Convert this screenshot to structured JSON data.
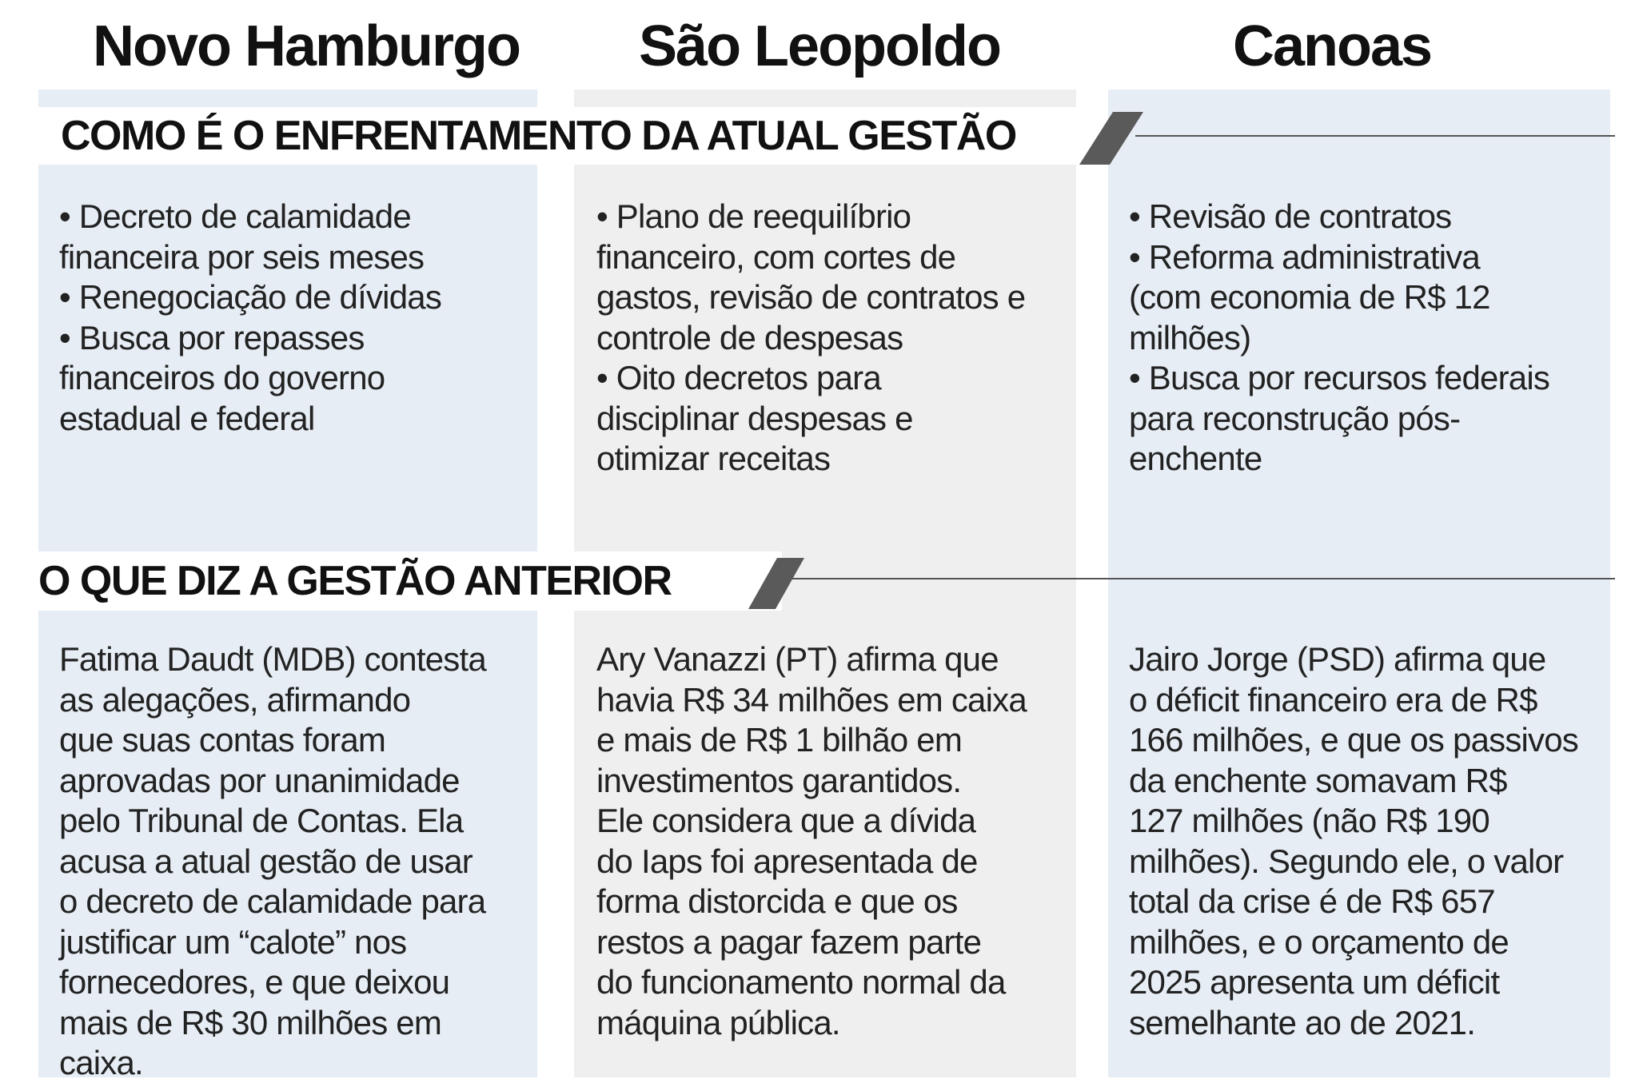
{
  "cities": [
    "Novo Hamburgo",
    "São Leopoldo",
    "Canoas"
  ],
  "section1": {
    "title": "COMO É O ENFRENTAMENTO DA ATUAL GESTÃO",
    "columns": [
      [
        "• Decreto de calamidade",
        "financeira por seis meses",
        "• Renegociação de dívidas",
        "• Busca por repasses",
        "financeiros do governo",
        "estadual e federal"
      ],
      [
        "• Plano de reequilíbrio",
        "financeiro, com cortes de",
        "gastos, revisão de contratos e",
        "controle de despesas",
        "• Oito decretos para",
        "disciplinar despesas e",
        "otimizar receitas"
      ],
      [
        "• Revisão de contratos",
        "• Reforma administrativa",
        "(com economia de R$ 12",
        "milhões)",
        "• Busca por recursos federais",
        "para reconstrução pós-",
        "enchente"
      ]
    ]
  },
  "section2": {
    "title": "O QUE DIZ A GESTÃO ANTERIOR",
    "columns": [
      [
        "Fatima Daudt (MDB) contesta",
        "as alegações, afirmando",
        "que suas contas foram",
        "aprovadas por unanimidade",
        "pelo Tribunal de Contas. Ela",
        "acusa a atual gestão de usar",
        "o decreto de calamidade para",
        "justificar um “calote” nos",
        "fornecedores, e que deixou",
        "mais de R$ 30 milhões em",
        "caixa."
      ],
      [
        "Ary Vanazzi (PT) afirma que",
        "havia R$ 34 milhões em caixa",
        "e mais de R$ 1 bilhão em",
        "investimentos garantidos.",
        "Ele considera que a dívida",
        "do Iaps foi apresentada de",
        "forma distorcida e que os",
        "restos a pagar fazem parte",
        "do funcionamento normal da",
        "máquina pública."
      ],
      [
        "Jairo Jorge (PSD) afirma que",
        "o déficit financeiro era de R$",
        "166 milhões, e que os passivos",
        "da enchente somavam R$",
        "127 milhões (não R$ 190",
        "milhões). Segundo ele, o valor",
        "total da crise é de R$ 657",
        "milhões, e o orçamento de",
        "2025 apresenta um déficit",
        "semelhante ao de 2021."
      ]
    ]
  },
  "colors": {
    "col_blue": "#e6edf4",
    "col_gray": "#efefef",
    "slash": "#5a5a5a"
  }
}
